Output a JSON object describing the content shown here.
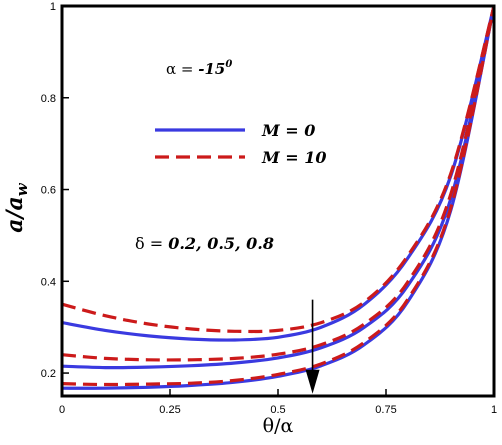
{
  "chart_data": {
    "type": "line",
    "xlabel": "θ/α",
    "ylabel": "a/a_w",
    "xlim": [
      0,
      1
    ],
    "ylim": [
      0.15,
      1.0
    ],
    "xticks": [
      "0",
      "0.25",
      "0.5",
      "0.75",
      "1"
    ],
    "yticks": [
      "0.2",
      "0.4",
      "0.6",
      "0.8",
      "1"
    ],
    "grid": false,
    "legend_position": "upper-left",
    "annotations": {
      "alpha": {
        "prefix": "α = ",
        "value": "-15",
        "sup": "0"
      },
      "delta": {
        "prefix": "δ = ",
        "value": "0.2, 0.5, 0.8"
      }
    },
    "colors": {
      "M0": "#3a3ae0",
      "M10": "#cc1a1a"
    },
    "series": [
      {
        "name": "M = 0",
        "group": "M0",
        "style": "solid",
        "delta": 0.2,
        "x": [
          0,
          0.1,
          0.2,
          0.3,
          0.4,
          0.5,
          0.6,
          0.7,
          0.8,
          0.9,
          1.0
        ],
        "y": [
          0.31,
          0.293,
          0.281,
          0.274,
          0.272,
          0.278,
          0.3,
          0.35,
          0.45,
          0.63,
          1.0
        ]
      },
      {
        "name": "M = 0",
        "group": "M0",
        "style": "solid",
        "delta": 0.5,
        "x": [
          0,
          0.1,
          0.2,
          0.3,
          0.4,
          0.5,
          0.6,
          0.7,
          0.8,
          0.9,
          1.0
        ],
        "y": [
          0.215,
          0.212,
          0.213,
          0.216,
          0.222,
          0.233,
          0.255,
          0.3,
          0.39,
          0.58,
          1.0
        ]
      },
      {
        "name": "M = 0",
        "group": "M0",
        "style": "solid",
        "delta": 0.8,
        "x": [
          0,
          0.1,
          0.2,
          0.3,
          0.4,
          0.5,
          0.6,
          0.7,
          0.8,
          0.9,
          1.0
        ],
        "y": [
          0.167,
          0.167,
          0.169,
          0.173,
          0.18,
          0.193,
          0.216,
          0.262,
          0.355,
          0.555,
          1.0
        ]
      },
      {
        "name": "M = 10",
        "group": "M10",
        "style": "dashed",
        "delta": 0.2,
        "x": [
          0,
          0.1,
          0.2,
          0.3,
          0.4,
          0.5,
          0.6,
          0.7,
          0.8,
          0.9,
          1.0
        ],
        "y": [
          0.35,
          0.325,
          0.307,
          0.296,
          0.291,
          0.293,
          0.31,
          0.355,
          0.455,
          0.635,
          1.0
        ]
      },
      {
        "name": "M = 10",
        "group": "M10",
        "style": "dashed",
        "delta": 0.5,
        "x": [
          0,
          0.1,
          0.2,
          0.3,
          0.4,
          0.5,
          0.6,
          0.7,
          0.8,
          0.9,
          1.0
        ],
        "y": [
          0.24,
          0.232,
          0.229,
          0.229,
          0.232,
          0.241,
          0.262,
          0.307,
          0.398,
          0.59,
          1.0
        ]
      },
      {
        "name": "M = 10",
        "group": "M10",
        "style": "dashed",
        "delta": 0.8,
        "x": [
          0,
          0.1,
          0.2,
          0.3,
          0.4,
          0.5,
          0.6,
          0.7,
          0.8,
          0.9,
          1.0
        ],
        "y": [
          0.177,
          0.175,
          0.176,
          0.178,
          0.184,
          0.197,
          0.22,
          0.267,
          0.36,
          0.56,
          1.0
        ]
      }
    ],
    "legend": [
      {
        "group": "M0",
        "label": "M = 0",
        "style": "solid"
      },
      {
        "group": "M10",
        "label": "M = 10",
        "style": "dashed"
      }
    ],
    "arrow": {
      "x": 0.58,
      "y_start": 0.36,
      "y_end": 0.155
    }
  }
}
